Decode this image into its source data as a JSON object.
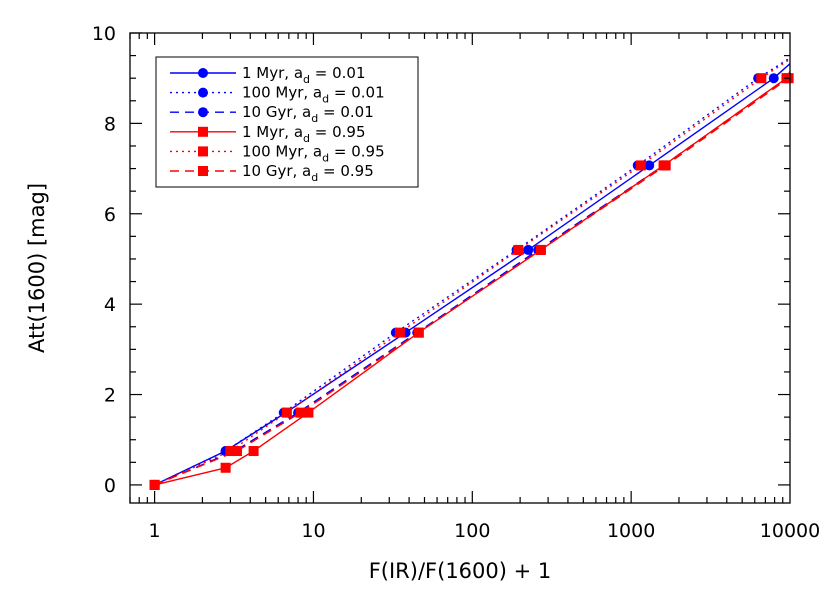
{
  "chart_data": {
    "type": "line",
    "xlabel": "F(IR)/F(1600) + 1",
    "ylabel": "Att(1600) [mag]",
    "xscale": "log",
    "xlim": [
      0.7,
      10000
    ],
    "ylim": [
      -0.4,
      10
    ],
    "x_ticks": [
      {
        "value": 1,
        "label": "1"
      },
      {
        "value": 10,
        "label": "10"
      },
      {
        "value": 100,
        "label": "100"
      },
      {
        "value": 1000,
        "label": "1000"
      },
      {
        "value": 10000,
        "label": "10000"
      }
    ],
    "y_ticks": [
      {
        "value": 0,
        "label": "0"
      },
      {
        "value": 2,
        "label": "2"
      },
      {
        "value": 4,
        "label": "4"
      },
      {
        "value": 6,
        "label": "6"
      },
      {
        "value": 8,
        "label": "8"
      },
      {
        "value": 10,
        "label": "10"
      }
    ],
    "legend_position": "top-left",
    "series": [
      {
        "legend": {
          "prefix": "1 Myr, a",
          "subscript": "d",
          "suffix": " = 0.01"
        },
        "color": "#0000ff",
        "dash": "solid",
        "marker": "circle",
        "points": [
          [
            1,
            0
          ],
          [
            2.8,
            0.75
          ],
          [
            6.7,
            1.6
          ],
          [
            38,
            3.37
          ],
          [
            225,
            5.2
          ],
          [
            1300,
            7.07
          ],
          [
            7900,
            9.0
          ],
          [
            10000,
            9.32
          ]
        ]
      },
      {
        "legend": {
          "prefix": "100 Myr, a",
          "subscript": "d",
          "suffix": " = 0.01"
        },
        "color": "#0000ff",
        "dash": "dotted",
        "marker": "circle",
        "points": [
          [
            1,
            0
          ],
          [
            2.8,
            0.75
          ],
          [
            6.5,
            1.6
          ],
          [
            33,
            3.37
          ],
          [
            190,
            5.2
          ],
          [
            1100,
            7.07
          ],
          [
            6300,
            9.0
          ],
          [
            10000,
            9.45
          ]
        ]
      },
      {
        "legend": {
          "prefix": "10 Gyr, a",
          "subscript": "d",
          "suffix": " = 0.01"
        },
        "color": "#0000ff",
        "dash": "dashed",
        "marker": "circle",
        "points": [
          [
            1,
            0
          ],
          [
            3.2,
            0.75
          ],
          [
            8.0,
            1.6
          ],
          [
            45,
            3.37
          ],
          [
            260,
            5.2
          ],
          [
            1600,
            7.07
          ],
          [
            9500,
            9.0
          ],
          [
            10000,
            9.05
          ]
        ]
      },
      {
        "legend": {
          "prefix": "1 Myr, a",
          "subscript": "d",
          "suffix": " = 0.95"
        },
        "color": "#ff0000",
        "dash": "solid",
        "marker": "square",
        "points": [
          [
            1,
            0
          ],
          [
            2.8,
            0.38
          ],
          [
            4.2,
            0.75
          ],
          [
            9.3,
            1.6
          ],
          [
            46,
            3.37
          ],
          [
            270,
            5.2
          ],
          [
            1600,
            7.07
          ],
          [
            9500,
            9.0
          ],
          [
            10000,
            9.15
          ]
        ]
      },
      {
        "legend": {
          "prefix": "100 Myr, a",
          "subscript": "d",
          "suffix": " = 0.95"
        },
        "color": "#ff0000",
        "dash": "dotted",
        "marker": "square",
        "points": [
          [
            1,
            0
          ],
          [
            3.0,
            0.75
          ],
          [
            6.8,
            1.6
          ],
          [
            35,
            3.37
          ],
          [
            195,
            5.2
          ],
          [
            1150,
            7.07
          ],
          [
            6600,
            9.0
          ],
          [
            10000,
            9.42
          ]
        ]
      },
      {
        "legend": {
          "prefix": "10 Gyr, a",
          "subscript": "d",
          "suffix": " = 0.95"
        },
        "color": "#ff0000",
        "dash": "dashed",
        "marker": "square",
        "points": [
          [
            1,
            0
          ],
          [
            3.3,
            0.75
          ],
          [
            8.3,
            1.6
          ],
          [
            46,
            3.37
          ],
          [
            270,
            5.2
          ],
          [
            1650,
            7.07
          ],
          [
            9800,
            9.0
          ],
          [
            10000,
            9.02
          ]
        ]
      }
    ]
  }
}
